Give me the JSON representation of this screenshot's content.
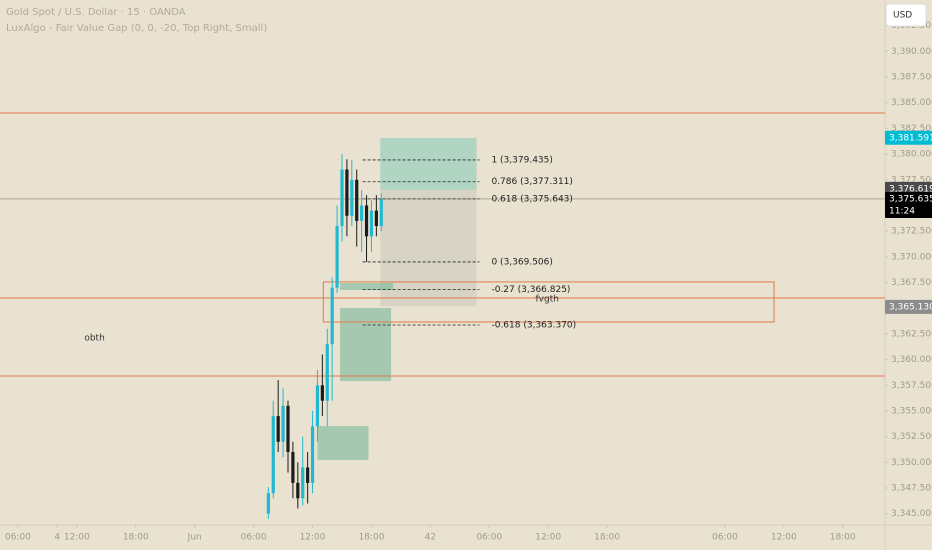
{
  "chart_data": {
    "type": "candlestick",
    "title": "Gold Spot / U.S. Dollar · 15 · OANDA",
    "subtitle": "LuxAlgo - Fair Value Gap (0, 0, -20, Top Right, Small)",
    "currency": "USD",
    "up_color": "#22b8cf",
    "down_color": "#1b1b1b",
    "level_color": "#e07b4a",
    "xlim": [
      -1.83,
      88.3
    ],
    "ylim": [
      3343.9,
      3395.0
    ],
    "xticks": [
      {
        "value": 0,
        "label": "06:00"
      },
      {
        "value": 6,
        "label": "12:00"
      },
      {
        "value": 12,
        "label": "18:00"
      },
      {
        "value": 18,
        "label": "Jun"
      },
      {
        "value": 24,
        "label": "06:00"
      },
      {
        "value": 30,
        "label": "12:00"
      },
      {
        "value": 36,
        "label": "18:00"
      },
      42,
      {
        "value": 48,
        "label": "06:00"
      },
      {
        "value": 54,
        "label": "12:00"
      },
      {
        "value": 60,
        "label": "18:00"
      },
      4,
      {
        "value": 72,
        "label": "06:00"
      },
      {
        "value": 78,
        "label": "12:00"
      },
      {
        "value": 84,
        "label": "18:00"
      }
    ],
    "yticks": [
      {
        "value": 3345.0,
        "label": "3,345.000"
      },
      {
        "value": 3347.5,
        "label": "3,347.500"
      },
      {
        "value": 3350.0,
        "label": "3,350.000"
      },
      {
        "value": 3352.5,
        "label": "3,352.500"
      },
      {
        "value": 3355.0,
        "label": "3,355.000"
      },
      {
        "value": 3357.5,
        "label": "3,357.500"
      },
      {
        "value": 3360.0,
        "label": "3,360.000"
      },
      {
        "value": 3362.5,
        "label": "3,362.500"
      },
      {
        "value": 3365.0,
        "label": "3,365.000"
      },
      {
        "value": 3367.5,
        "label": "3,367.500"
      },
      {
        "value": 3370.0,
        "label": "3,370.000"
      },
      {
        "value": 3372.5,
        "label": "3,372.500"
      },
      {
        "value": 3375.0,
        "label": "3,375.000"
      },
      {
        "value": 3377.5,
        "label": "3,377.500"
      },
      {
        "value": 3380.0,
        "label": "3,380.000"
      },
      {
        "value": 3382.5,
        "label": "3,382.500"
      },
      {
        "value": 3385.0,
        "label": "3,385.000"
      },
      {
        "value": 3387.5,
        "label": "3,387.500"
      },
      {
        "value": 3390.0,
        "label": "3,390.000"
      },
      {
        "value": 3392.5,
        "label": "3,392.500"
      }
    ],
    "x": [
      25.5,
      26.0,
      26.5,
      27.0,
      27.5,
      28.0,
      28.5,
      29.0,
      29.5,
      30.0,
      30.5,
      31.0,
      31.5,
      32.0,
      32.5,
      33.0,
      33.5,
      34.0,
      34.5,
      35.0,
      35.5,
      36.0,
      36.5,
      37.0
    ],
    "open": [
      3345.0,
      3347.0,
      3354.5,
      3352.0,
      3355.5,
      3351.0,
      3348.0,
      3346.5,
      3349.5,
      3348.0,
      3353.5,
      3357.5,
      3356.0,
      3361.5,
      3367.0,
      3373.0,
      3378.5,
      3374.0,
      3377.5,
      3373.5,
      3375.0,
      3372.0,
      3374.5,
      3373.0
    ],
    "high": [
      3347.6,
      3356.0,
      3358.0,
      3357.2,
      3356.0,
      3352.0,
      3350.0,
      3352.5,
      3351.0,
      3355.0,
      3359.0,
      3360.5,
      3363.0,
      3368.0,
      3375.0,
      3380.0,
      3379.5,
      3379.4,
      3378.5,
      3376.5,
      3376.0,
      3375.5,
      3376.0,
      3376.2
    ],
    "low": [
      3344.5,
      3346.5,
      3351.0,
      3350.5,
      3349.0,
      3346.5,
      3345.5,
      3345.8,
      3346.0,
      3347.0,
      3352.0,
      3354.5,
      3353.5,
      3356.0,
      3366.5,
      3371.5,
      3372.0,
      3373.0,
      3371.0,
      3370.5,
      3369.5,
      3370.5,
      3372.0,
      3372.5
    ],
    "close": [
      3347.0,
      3354.5,
      3352.0,
      3355.5,
      3351.0,
      3348.0,
      3346.5,
      3349.5,
      3348.0,
      3353.5,
      3357.5,
      3356.0,
      3361.5,
      3367.0,
      3373.0,
      3378.5,
      3374.0,
      3377.5,
      3373.5,
      3375.0,
      3372.0,
      3374.5,
      3373.0,
      3375.6
    ],
    "levels": [
      3384.0,
      3366.0,
      3358.4
    ],
    "zones": [
      {
        "x": [
          36.9,
          46.7
        ],
        "y": [
          3376.52,
          3381.58
        ],
        "color": "rgba(120,200,180,0.5)",
        "style": "fill"
      },
      {
        "x": [
          36.9,
          46.7
        ],
        "y": [
          3365.2,
          3376.52
        ],
        "color": "rgba(200,200,190,0.55)",
        "style": "fill"
      },
      {
        "x": [
          32.8,
          38.2
        ],
        "y": [
          3366.78,
          3367.46
        ],
        "color": "rgba(110,180,150,0.55)",
        "style": "fill"
      },
      {
        "x": [
          32.8,
          38.0
        ],
        "y": [
          3357.91,
          3365.02
        ],
        "color": "rgba(110,180,150,0.55)",
        "style": "fill"
      },
      {
        "x": [
          30.5,
          35.7
        ],
        "y": [
          3350.22,
          3353.53
        ],
        "color": "rgba(110,180,150,0.55)",
        "style": "fill"
      },
      {
        "x": [
          31.1,
          77.0
        ],
        "y": [
          3363.66,
          3367.56
        ],
        "color": "#e07b4a",
        "style": "outline"
      }
    ],
    "fib_x": [
      35.1,
      47.0
    ],
    "fib": [
      {
        "value": 3379.435,
        "label": "1 (3,379.435)"
      },
      {
        "value": 3377.311,
        "label": "0.786 (3,377.311)"
      },
      {
        "value": 3375.643,
        "label": "0.618 (3,375.643)"
      },
      {
        "value": 3369.506,
        "label": "0 (3,369.506)"
      },
      {
        "value": 3366.825,
        "label": "-0.27 (3,366.825)"
      },
      {
        "value": 3363.37,
        "label": "-0.618 (3,363.370)"
      }
    ],
    "annotations": [
      {
        "text": "obth",
        "x": 7.8,
        "y": 3362.1
      },
      {
        "text": "fvgth",
        "x": 53.9,
        "y": 3365.9
      }
    ],
    "price_tags": [
      {
        "value": 3381.591,
        "label": "3,381.591",
        "color": "#00bcd4"
      },
      {
        "value": 3376.619,
        "label": "3,376.619",
        "color": "#4a4a4a"
      },
      {
        "value": 3375.635,
        "label": "3,375.635",
        "color": "#000000",
        "countdown": "11:24"
      },
      {
        "value": 3365.13,
        "label": "3,365.130",
        "color": "#8c8c8c"
      }
    ]
  }
}
